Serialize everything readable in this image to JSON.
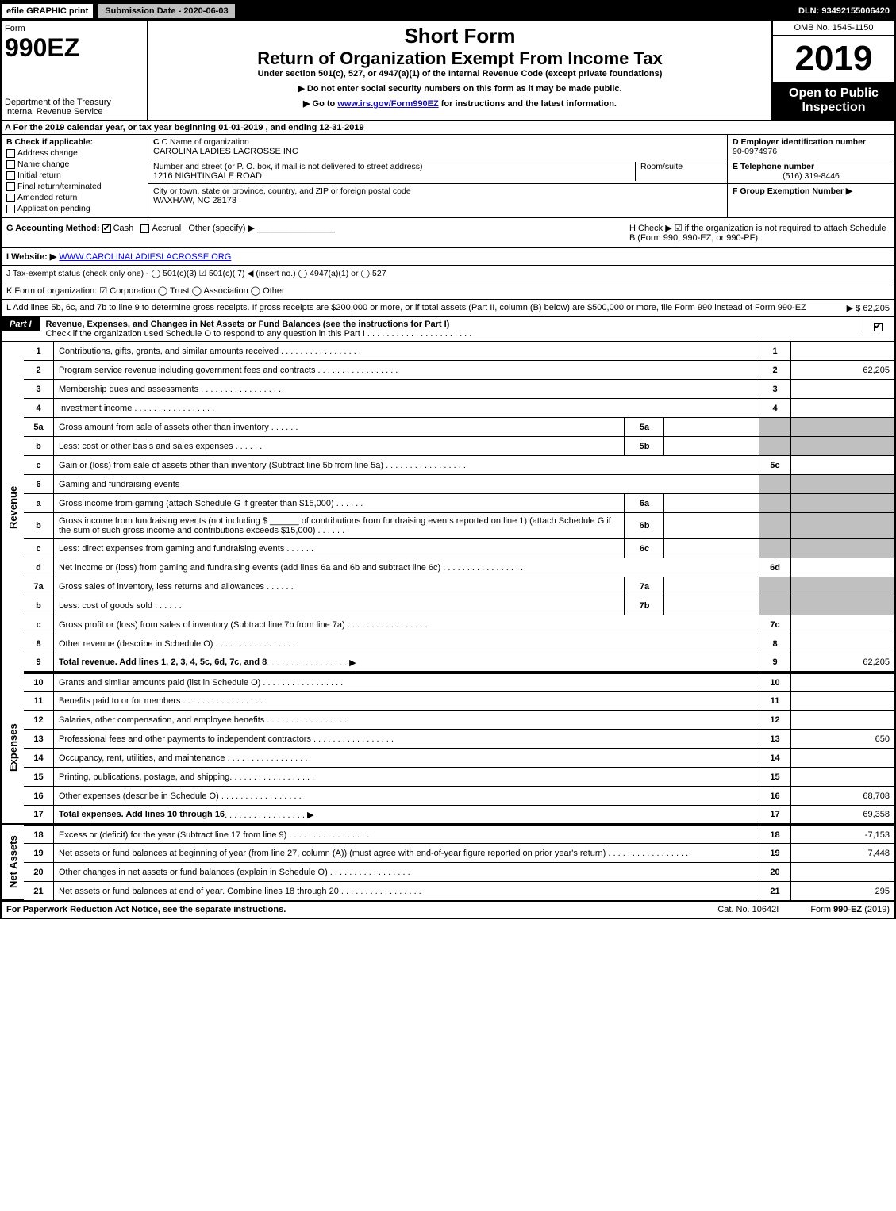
{
  "topbar": {
    "efile": "efile GRAPHIC print",
    "submission": "Submission Date - 2020-06-03",
    "dln": "DLN: 93492155006420"
  },
  "header": {
    "form_word": "Form",
    "form_number": "990EZ",
    "dept": "Department of the Treasury",
    "irs": "Internal Revenue Service",
    "short_form": "Short Form",
    "title": "Return of Organization Exempt From Income Tax",
    "subtitle": "Under section 501(c), 527, or 4947(a)(1) of the Internal Revenue Code (except private foundations)",
    "note1": "▶ Do not enter social security numbers on this form as it may be made public.",
    "note2_pre": "▶ Go to ",
    "note2_link": "www.irs.gov/Form990EZ",
    "note2_post": " for instructions and the latest information.",
    "omb": "OMB No. 1545-1150",
    "year": "2019",
    "open": "Open to Public Inspection"
  },
  "row_a": "A For the 2019 calendar year, or tax year beginning 01-01-2019 , and ending 12-31-2019",
  "section_b": {
    "label": "B Check if applicable:",
    "opts": [
      "Address change",
      "Name change",
      "Initial return",
      "Final return/terminated",
      "Amended return",
      "Application pending"
    ]
  },
  "section_c": {
    "name_label": "C Name of organization",
    "name": "CAROLINA LADIES LACROSSE INC",
    "street_label": "Number and street (or P. O. box, if mail is not delivered to street address)",
    "street": "1216 NIGHTINGALE ROAD",
    "room_label": "Room/suite",
    "city_label": "City or town, state or province, country, and ZIP or foreign postal code",
    "city": "WAXHAW, NC  28173"
  },
  "section_d": {
    "label": "D Employer identification number",
    "value": "90-0974976"
  },
  "section_e": {
    "label": "E Telephone number",
    "value": "(516) 319-8446"
  },
  "section_f": {
    "label": "F Group Exemption Number ▶",
    "value": ""
  },
  "row_g": {
    "label": "G Accounting Method:",
    "cash": "Cash",
    "accrual": "Accrual",
    "other": "Other (specify) ▶"
  },
  "row_h": "H  Check ▶ ☑ if the organization is not required to attach Schedule B (Form 990, 990-EZ, or 990-PF).",
  "row_i": {
    "label": "I Website: ▶",
    "value": "WWW.CAROLINALADIESLACROSSE.ORG"
  },
  "row_j": "J Tax-exempt status (check only one) - ◯ 501(c)(3) ☑ 501(c)( 7) ◀ (insert no.) ◯ 4947(a)(1) or ◯ 527",
  "row_k": "K Form of organization:  ☑ Corporation  ◯ Trust  ◯ Association  ◯ Other",
  "row_l": {
    "text": "L Add lines 5b, 6c, and 7b to line 9 to determine gross receipts. If gross receipts are $200,000 or more, or if total assets (Part II, column (B) below) are $500,000 or more, file Form 990 instead of Form 990-EZ",
    "arrow": "▶ $ 62,205"
  },
  "part1": {
    "label": "Part I",
    "title": "Revenue, Expenses, and Changes in Net Assets or Fund Balances (see the instructions for Part I)",
    "sub": "Check if the organization used Schedule O to respond to any question in this Part I"
  },
  "sections": {
    "revenue": "Revenue",
    "expenses": "Expenses",
    "netassets": "Net Assets"
  },
  "lines": [
    {
      "n": "1",
      "desc": "Contributions, gifts, grants, and similar amounts received",
      "ln": "1",
      "amt": ""
    },
    {
      "n": "2",
      "desc": "Program service revenue including government fees and contracts",
      "ln": "2",
      "amt": "62,205"
    },
    {
      "n": "3",
      "desc": "Membership dues and assessments",
      "ln": "3",
      "amt": ""
    },
    {
      "n": "4",
      "desc": "Investment income",
      "ln": "4",
      "amt": ""
    },
    {
      "n": "5a",
      "desc": "Gross amount from sale of assets other than inventory",
      "box": "5a",
      "boxamt": ""
    },
    {
      "n": "b",
      "desc": "Less: cost or other basis and sales expenses",
      "box": "5b",
      "boxamt": ""
    },
    {
      "n": "c",
      "desc": "Gain or (loss) from sale of assets other than inventory (Subtract line 5b from line 5a)",
      "ln": "5c",
      "amt": ""
    },
    {
      "n": "6",
      "desc": "Gaming and fundraising events"
    },
    {
      "n": "a",
      "desc": "Gross income from gaming (attach Schedule G if greater than $15,000)",
      "box": "6a",
      "boxamt": ""
    },
    {
      "n": "b",
      "desc": "Gross income from fundraising events (not including $ ______ of contributions from fundraising events reported on line 1) (attach Schedule G if the sum of such gross income and contributions exceeds $15,000)",
      "box": "6b",
      "boxamt": ""
    },
    {
      "n": "c",
      "desc": "Less: direct expenses from gaming and fundraising events",
      "box": "6c",
      "boxamt": ""
    },
    {
      "n": "d",
      "desc": "Net income or (loss) from gaming and fundraising events (add lines 6a and 6b and subtract line 6c)",
      "ln": "6d",
      "amt": ""
    },
    {
      "n": "7a",
      "desc": "Gross sales of inventory, less returns and allowances",
      "box": "7a",
      "boxamt": ""
    },
    {
      "n": "b",
      "desc": "Less: cost of goods sold",
      "box": "7b",
      "boxamt": ""
    },
    {
      "n": "c",
      "desc": "Gross profit or (loss) from sales of inventory (Subtract line 7b from line 7a)",
      "ln": "7c",
      "amt": ""
    },
    {
      "n": "8",
      "desc": "Other revenue (describe in Schedule O)",
      "ln": "8",
      "amt": ""
    },
    {
      "n": "9",
      "desc": "Total revenue. Add lines 1, 2, 3, 4, 5c, 6d, 7c, and 8",
      "ln": "9",
      "amt": "62,205",
      "bold": true,
      "arrow": true
    },
    {
      "n": "10",
      "desc": "Grants and similar amounts paid (list in Schedule O)",
      "ln": "10",
      "amt": ""
    },
    {
      "n": "11",
      "desc": "Benefits paid to or for members",
      "ln": "11",
      "amt": ""
    },
    {
      "n": "12",
      "desc": "Salaries, other compensation, and employee benefits",
      "ln": "12",
      "amt": ""
    },
    {
      "n": "13",
      "desc": "Professional fees and other payments to independent contractors",
      "ln": "13",
      "amt": "650"
    },
    {
      "n": "14",
      "desc": "Occupancy, rent, utilities, and maintenance",
      "ln": "14",
      "amt": ""
    },
    {
      "n": "15",
      "desc": "Printing, publications, postage, and shipping.",
      "ln": "15",
      "amt": ""
    },
    {
      "n": "16",
      "desc": "Other expenses (describe in Schedule O)",
      "ln": "16",
      "amt": "68,708"
    },
    {
      "n": "17",
      "desc": "Total expenses. Add lines 10 through 16",
      "ln": "17",
      "amt": "69,358",
      "bold": true,
      "arrow": true
    },
    {
      "n": "18",
      "desc": "Excess or (deficit) for the year (Subtract line 17 from line 9)",
      "ln": "18",
      "amt": "-7,153"
    },
    {
      "n": "19",
      "desc": "Net assets or fund balances at beginning of year (from line 27, column (A)) (must agree with end-of-year figure reported on prior year's return)",
      "ln": "19",
      "amt": "7,448"
    },
    {
      "n": "20",
      "desc": "Other changes in net assets or fund balances (explain in Schedule O)",
      "ln": "20",
      "amt": ""
    },
    {
      "n": "21",
      "desc": "Net assets or fund balances at end of year. Combine lines 18 through 20",
      "ln": "21",
      "amt": "295"
    }
  ],
  "footer": {
    "left": "For Paperwork Reduction Act Notice, see the separate instructions.",
    "mid": "Cat. No. 10642I",
    "right": "Form 990-EZ (2019)"
  },
  "colors": {
    "black": "#000000",
    "white": "#ffffff",
    "gray": "#c0c0c0",
    "link": "#1a0dab"
  }
}
